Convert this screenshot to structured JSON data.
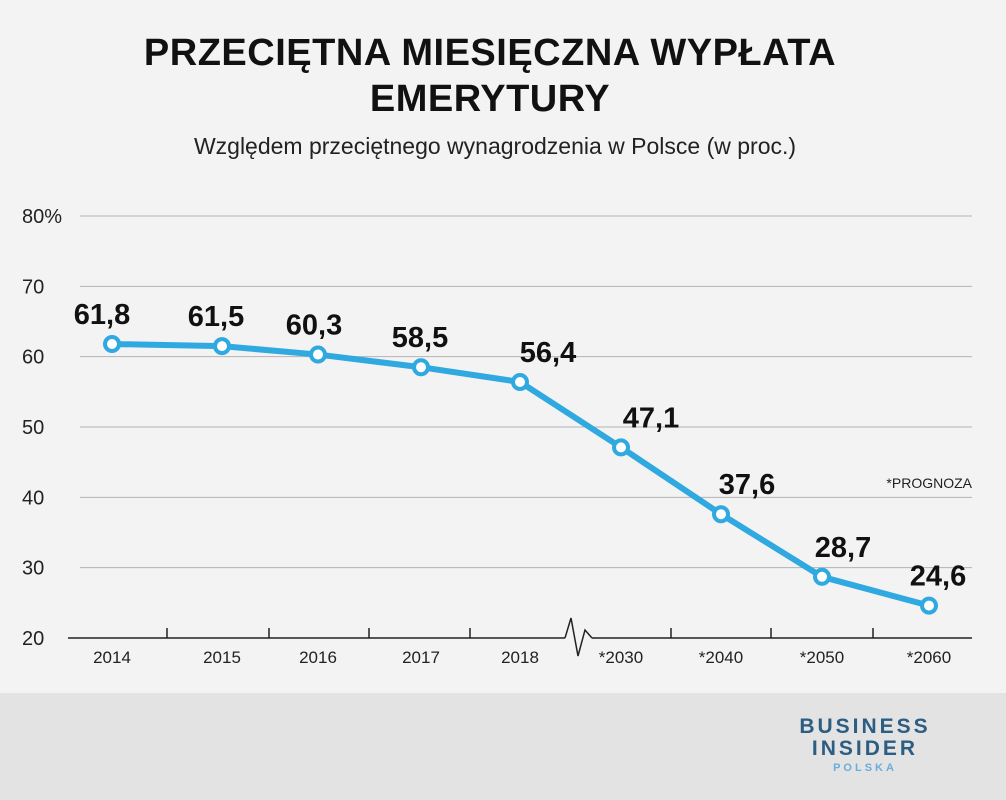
{
  "chart_data": {
    "type": "line",
    "title_line1": "PRZECIĘTNA MIESIĘCZNA WYPŁATA",
    "title_line2": "EMERYTURY",
    "subtitle": "Względem przeciętnego wynagrodzenia w Polsce (w proc.)",
    "categories": [
      "2014",
      "2015",
      "2016",
      "2017",
      "2018",
      "*2030",
      "*2040",
      "*2050",
      "*2060"
    ],
    "data_labels": [
      "61,8",
      "61,5",
      "60,3",
      "58,5",
      "56,4",
      "47,1",
      "37,6",
      "28,7",
      "24,6"
    ],
    "series": [
      {
        "name": "Przeciętna wypłata emerytury",
        "values": [
          61.8,
          61.5,
          60.3,
          58.5,
          56.4,
          47.1,
          37.6,
          28.7,
          24.6
        ]
      }
    ],
    "yticks": [
      "80%",
      "70",
      "60",
      "50",
      "40",
      "30",
      "20"
    ],
    "ylim": [
      20,
      80
    ],
    "grid": true,
    "line_color": "#2fa9e0",
    "note": "*PROGNOZA"
  },
  "brand": {
    "line1": "BUSINESS",
    "line2": "INSIDER",
    "line3": "POLSKA"
  }
}
